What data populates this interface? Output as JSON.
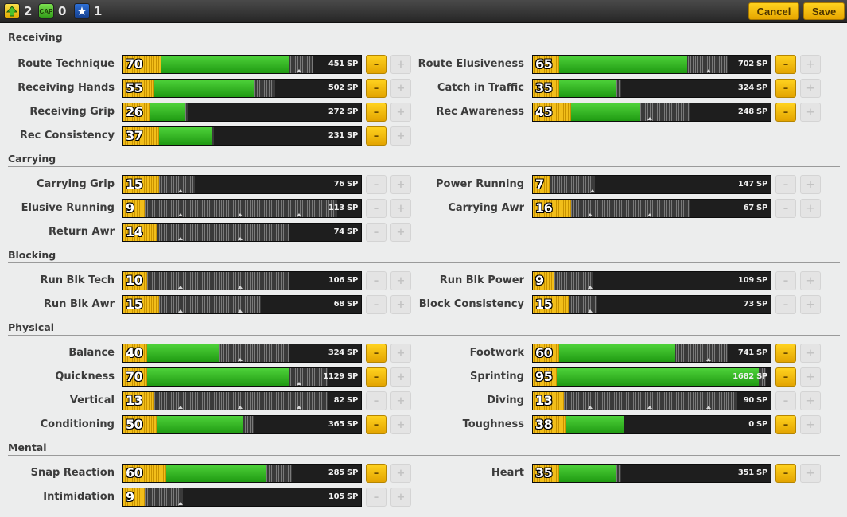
{
  "topbar": {
    "counters": [
      {
        "icon": "level-up-arrow-icon",
        "value": "2"
      },
      {
        "icon": "cap-icon",
        "icon_text": "CAP",
        "value": "0"
      },
      {
        "icon": "star-icon",
        "value": "1"
      }
    ],
    "cancel_label": "Cancel",
    "save_label": "Save"
  },
  "colors": {
    "accent_yellow": "#f2be1a",
    "bar_green": "#2fb21e",
    "bar_dark": "#1e1e1e"
  },
  "sections": [
    {
      "title": "Receiving",
      "stats": [
        {
          "label": "Route Technique",
          "value": "70",
          "sp": "451 SP",
          "yellow": 0.16,
          "green": 0.7,
          "gray": 0.8,
          "marks": [
            0.74
          ],
          "minus": true,
          "plus": false
        },
        {
          "label": "Route Elusiveness",
          "value": "65",
          "sp": "702 SP",
          "yellow": 0.11,
          "green": 0.65,
          "gray": 0.82,
          "marks": [
            0.74
          ],
          "minus": true,
          "plus": false
        },
        {
          "label": "Receiving Hands",
          "value": "55",
          "sp": "502 SP",
          "yellow": 0.13,
          "green": 0.55,
          "gray": 0.64,
          "marks": [],
          "minus": true,
          "plus": false
        },
        {
          "label": "Catch in Traffic",
          "value": "35",
          "sp": "324 SP",
          "yellow": 0.11,
          "green": 0.35,
          "gray": 0.37,
          "marks": [],
          "minus": true,
          "plus": false
        },
        {
          "label": "Receiving Grip",
          "value": "26",
          "sp": "272 SP",
          "yellow": 0.11,
          "green": 0.26,
          "gray": 0.27,
          "marks": [],
          "minus": true,
          "plus": false
        },
        {
          "label": "Rec Awareness",
          "value": "45",
          "sp": "248 SP",
          "yellow": 0.16,
          "green": 0.45,
          "gray": 0.66,
          "marks": [
            0.49
          ],
          "minus": true,
          "plus": false
        },
        {
          "label": "Rec Consistency",
          "value": "37",
          "sp": "231 SP",
          "yellow": 0.15,
          "green": 0.37,
          "gray": 0.38,
          "marks": [],
          "minus": true,
          "plus": false
        }
      ]
    },
    {
      "title": "Carrying",
      "stats": [
        {
          "label": "Carrying Grip",
          "value": "15",
          "sp": "76 SP",
          "yellow": 0.15,
          "green": 0,
          "gray": 0.3,
          "marks": [
            0.24
          ],
          "minus": false,
          "plus": false
        },
        {
          "label": "Power Running",
          "value": "7",
          "sp": "147 SP",
          "yellow": 0.07,
          "green": 0,
          "gray": 0.26,
          "marks": [
            0.25
          ],
          "minus": false,
          "plus": false
        },
        {
          "label": "Elusive Running",
          "value": "9",
          "sp": "113 SP",
          "yellow": 0.09,
          "green": 0,
          "gray": 0.9,
          "marks": [
            0.24,
            0.49,
            0.74
          ],
          "minus": false,
          "plus": false
        },
        {
          "label": "Carrying Awr",
          "value": "16",
          "sp": "67 SP",
          "yellow": 0.16,
          "green": 0,
          "gray": 0.66,
          "marks": [
            0.24,
            0.49
          ],
          "minus": false,
          "plus": false
        },
        {
          "label": "Return Awr",
          "value": "14",
          "sp": "74 SP",
          "yellow": 0.14,
          "green": 0,
          "gray": 0.7,
          "marks": [
            0.24,
            0.49
          ],
          "minus": false,
          "plus": false
        }
      ]
    },
    {
      "title": "Blocking",
      "stats": [
        {
          "label": "Run Blk Tech",
          "value": "10",
          "sp": "106 SP",
          "yellow": 0.1,
          "green": 0,
          "gray": 0.7,
          "marks": [
            0.24,
            0.49
          ],
          "minus": false,
          "plus": false
        },
        {
          "label": "Run Blk Power",
          "value": "9",
          "sp": "109 SP",
          "yellow": 0.09,
          "green": 0,
          "gray": 0.25,
          "marks": [
            0.24
          ],
          "minus": false,
          "plus": false
        },
        {
          "label": "Run Blk Awr",
          "value": "15",
          "sp": "68 SP",
          "yellow": 0.15,
          "green": 0,
          "gray": 0.58,
          "marks": [
            0.24,
            0.49
          ],
          "minus": false,
          "plus": false
        },
        {
          "label": "Block Consistency",
          "value": "15",
          "sp": "73 SP",
          "yellow": 0.15,
          "green": 0,
          "gray": 0.27,
          "marks": [
            0.24
          ],
          "minus": false,
          "plus": false
        }
      ]
    },
    {
      "title": "Physical",
      "stats": [
        {
          "label": "Balance",
          "value": "40",
          "sp": "324 SP",
          "yellow": 0.1,
          "green": 0.4,
          "gray": 0.7,
          "marks": [
            0.49
          ],
          "minus": true,
          "plus": false
        },
        {
          "label": "Footwork",
          "value": "60",
          "sp": "741 SP",
          "yellow": 0.11,
          "green": 0.6,
          "gray": 0.82,
          "marks": [
            0.74
          ],
          "minus": true,
          "plus": false
        },
        {
          "label": "Quickness",
          "value": "70",
          "sp": "1129 SP",
          "yellow": 0.1,
          "green": 0.7,
          "gray": 0.86,
          "marks": [
            0.74
          ],
          "minus": true,
          "plus": false
        },
        {
          "label": "Sprinting",
          "value": "95",
          "sp": "1682 SP",
          "yellow": 0.1,
          "green": 0.95,
          "gray": 0.98,
          "marks": [],
          "minus": true,
          "plus": false
        },
        {
          "label": "Vertical",
          "value": "13",
          "sp": "82 SP",
          "yellow": 0.13,
          "green": 0,
          "gray": 0.86,
          "marks": [
            0.24,
            0.49,
            0.74
          ],
          "minus": false,
          "plus": false
        },
        {
          "label": "Diving",
          "value": "13",
          "sp": "90 SP",
          "yellow": 0.13,
          "green": 0,
          "gray": 0.86,
          "marks": [
            0.24,
            0.49,
            0.74
          ],
          "minus": false,
          "plus": false
        },
        {
          "label": "Conditioning",
          "value": "50",
          "sp": "365 SP",
          "yellow": 0.14,
          "green": 0.5,
          "gray": 0.55,
          "marks": [],
          "minus": true,
          "plus": false
        },
        {
          "label": "Toughness",
          "value": "38",
          "sp": "0 SP",
          "yellow": 0.14,
          "green": 0.38,
          "gray": 0.38,
          "marks": [],
          "minus": true,
          "plus": false
        }
      ]
    },
    {
      "title": "Mental",
      "stats": [
        {
          "label": "Snap Reaction",
          "value": "60",
          "sp": "285 SP",
          "yellow": 0.18,
          "green": 0.6,
          "gray": 0.71,
          "marks": [],
          "minus": true,
          "plus": false
        },
        {
          "label": "Heart",
          "value": "35",
          "sp": "351 SP",
          "yellow": 0.11,
          "green": 0.35,
          "gray": 0.37,
          "marks": [],
          "minus": true,
          "plus": false
        },
        {
          "label": "Intimidation",
          "value": "9",
          "sp": "105 SP",
          "yellow": 0.09,
          "green": 0,
          "gray": 0.25,
          "marks": [
            0.24
          ],
          "minus": false,
          "plus": false
        }
      ]
    }
  ]
}
